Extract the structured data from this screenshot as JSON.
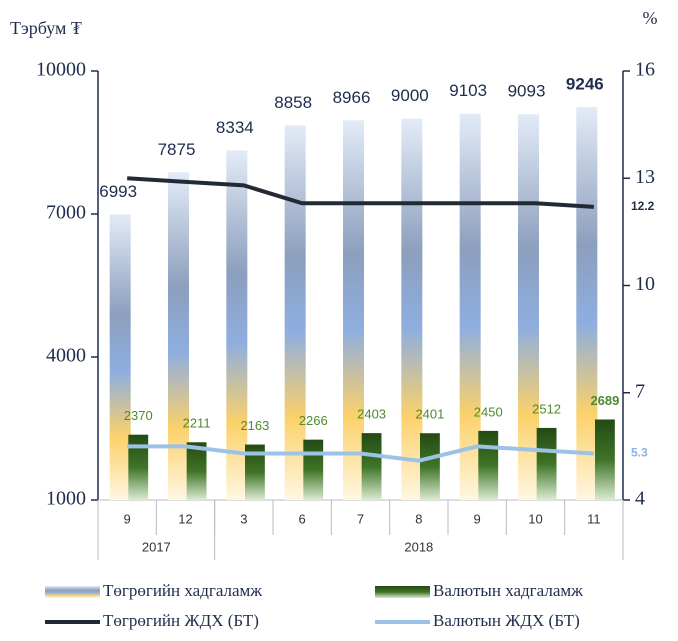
{
  "chart_data": {
    "type": "bar-line",
    "y_label": "Тэрбум ₮",
    "y2_label": "%",
    "categories": [
      "9",
      "12",
      "3",
      "6",
      "7",
      "8",
      "9",
      "10",
      "11"
    ],
    "groups": [
      {
        "label": "2017",
        "span": 2
      },
      {
        "label": "2018",
        "span": 7
      }
    ],
    "series": [
      {
        "name": "Төгрөгийн хадгаламж",
        "kind": "bar",
        "color": "#8fa6cc",
        "label_color": "#1f2d4d",
        "values": [
          6993,
          7875,
          8334,
          8858,
          8966,
          9000,
          9103,
          9093,
          9246
        ]
      },
      {
        "name": "Валютын хадгаламж",
        "kind": "bar",
        "color": "#2f5a1c",
        "label_color": "#4e8a2e",
        "values": [
          2370,
          2211,
          2163,
          2266,
          2403,
          2401,
          2450,
          2512,
          2689
        ]
      },
      {
        "name": "Төгрөгийн ЖДХ (БТ)",
        "kind": "line",
        "axis": "y2",
        "color": "#222a33",
        "values": [
          13.0,
          12.9,
          12.8,
          12.3,
          12.3,
          12.3,
          12.3,
          12.3,
          12.2
        ]
      },
      {
        "name": "Валютын ЖДХ (БТ)",
        "kind": "line",
        "axis": "y2",
        "color": "#9cc3e6",
        "values": [
          5.5,
          5.5,
          5.3,
          5.3,
          5.3,
          5.1,
          5.5,
          5.4,
          5.3
        ]
      }
    ],
    "ylim": [
      1000,
      10000
    ],
    "yticks": [
      1000,
      4000,
      7000,
      10000
    ],
    "y2lim": [
      4,
      16
    ],
    "y2ticks": [
      4,
      7,
      10,
      13,
      16
    ]
  }
}
